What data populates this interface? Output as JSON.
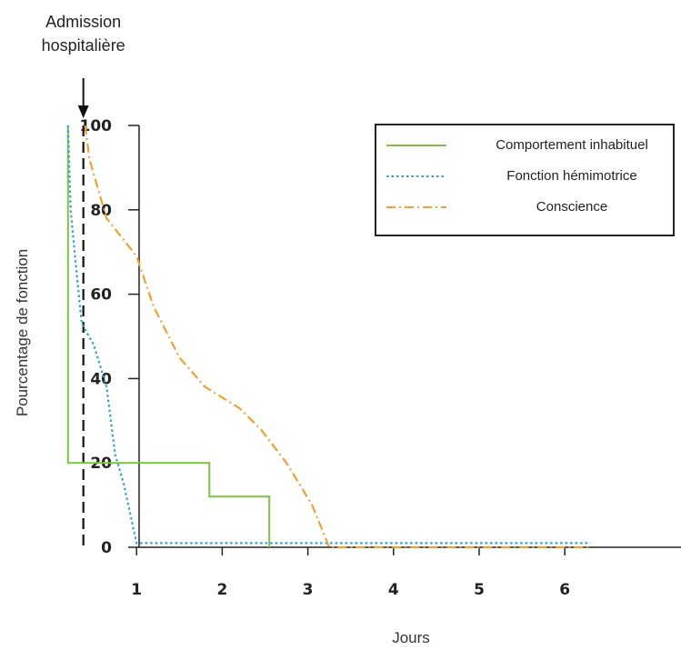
{
  "chart_data": {
    "type": "line",
    "xlabel": "Jours",
    "ylabel": "Pourcentage de fonction",
    "xlim": [
      -0.0,
      6.3
    ],
    "ylim": [
      0,
      100
    ],
    "xticks": [
      1,
      2,
      3,
      4,
      5,
      6
    ],
    "yticks": [
      0,
      20,
      40,
      60,
      80,
      100
    ],
    "annotation": {
      "lines": [
        "Admission",
        "hospitalière"
      ],
      "x": 0.4
    },
    "legend_position": "top-right",
    "series": [
      {
        "name": "Comportement inhabituel",
        "color": "#7dc242",
        "style": "solid",
        "points": [
          [
            0.2,
            100
          ],
          [
            0.2,
            20
          ],
          [
            1.85,
            20
          ],
          [
            1.85,
            12
          ],
          [
            2.55,
            12
          ],
          [
            2.55,
            0
          ]
        ]
      },
      {
        "name": "Fonction hémimotrice",
        "color": "#2e9fd9",
        "style": "dotted",
        "points": [
          [
            0.2,
            100
          ],
          [
            0.23,
            80
          ],
          [
            0.3,
            65
          ],
          [
            0.36,
            53
          ],
          [
            0.5,
            48
          ],
          [
            0.65,
            38
          ],
          [
            0.75,
            22
          ],
          [
            0.85,
            15
          ],
          [
            1.0,
            1
          ],
          [
            1.3,
            1
          ],
          [
            2.0,
            1
          ],
          [
            3.0,
            1
          ],
          [
            4.0,
            1
          ],
          [
            5.0,
            1
          ],
          [
            6.3,
            1
          ]
        ]
      },
      {
        "name": "Conscience",
        "color": "#f0a032",
        "style": "dashdot",
        "points": [
          [
            0.4,
            100
          ],
          [
            0.45,
            92
          ],
          [
            0.65,
            78
          ],
          [
            1.0,
            69
          ],
          [
            1.2,
            57
          ],
          [
            1.5,
            45
          ],
          [
            1.8,
            38
          ],
          [
            2.2,
            33
          ],
          [
            2.45,
            28
          ],
          [
            2.75,
            20
          ],
          [
            3.05,
            10
          ],
          [
            3.25,
            0
          ],
          [
            3.5,
            0
          ],
          [
            4.0,
            0
          ],
          [
            5.0,
            0
          ],
          [
            6.3,
            0
          ]
        ]
      }
    ]
  }
}
